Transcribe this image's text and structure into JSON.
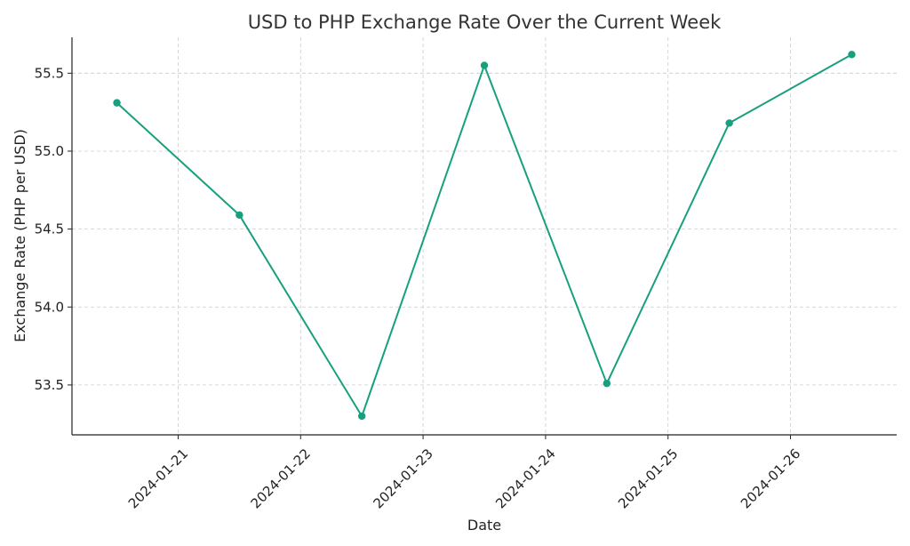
{
  "chart_data": {
    "type": "line",
    "title": "USD to PHP Exchange Rate Over the Current Week",
    "xlabel": "Date",
    "ylabel": "Exchange Rate (PHP per USD)",
    "x": [
      "2024-01-20 12:00",
      "2024-01-21 12:00",
      "2024-01-22 12:00",
      "2024-01-23 12:00",
      "2024-01-24 12:00",
      "2024-01-25 12:00",
      "2024-01-26 12:00"
    ],
    "x_ticks": [
      "2024-01-21",
      "2024-01-22",
      "2024-01-23",
      "2024-01-24",
      "2024-01-25",
      "2024-01-26"
    ],
    "xlim": [
      "2024-01-20 03:12",
      "2024-01-26 20:48"
    ],
    "y_ticks": [
      53.5,
      54.0,
      54.5,
      55.0,
      55.5
    ],
    "ylim": [
      53.18,
      55.73
    ],
    "series": [
      {
        "values": [
          55.31,
          54.59,
          53.3,
          55.55,
          53.51,
          55.18,
          55.62
        ],
        "color": "#17a07e"
      }
    ],
    "grid": true,
    "legend": "none"
  }
}
